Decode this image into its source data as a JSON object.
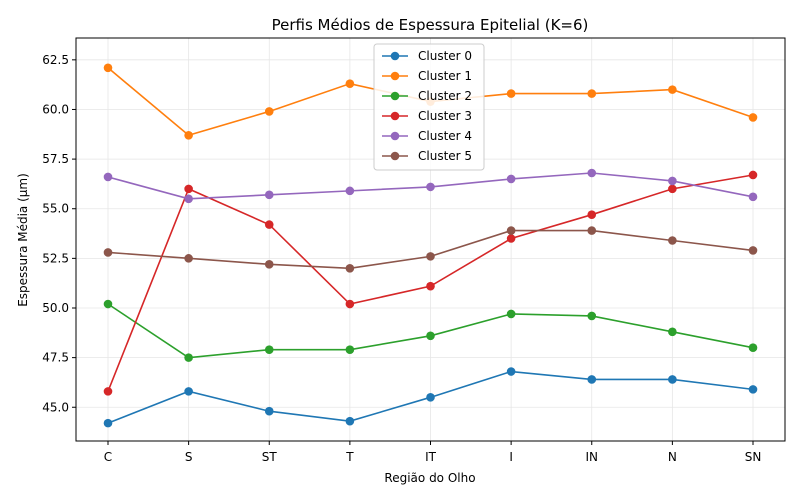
{
  "chart_data": {
    "type": "line",
    "title": "Perfis Médios de Espessura Epitelial (K=6)",
    "xlabel": "Região do Olho",
    "ylabel": "Espessura Média (µm)",
    "categories": [
      "C",
      "S",
      "ST",
      "T",
      "IT",
      "I",
      "IN",
      "N",
      "SN"
    ],
    "ylim": [
      43.3,
      63.6
    ],
    "yticks": [
      45.0,
      47.5,
      50.0,
      52.5,
      55.0,
      57.5,
      60.0,
      62.5
    ],
    "ytick_labels": [
      "45.0",
      "47.5",
      "50.0",
      "52.5",
      "55.0",
      "57.5",
      "60.0",
      "62.5"
    ],
    "grid": true,
    "legend_position": "top-center",
    "series": [
      {
        "name": "Cluster 0",
        "color": "#1f77b4",
        "values": [
          44.2,
          45.8,
          44.8,
          44.3,
          45.5,
          46.8,
          46.4,
          46.4,
          45.9
        ]
      },
      {
        "name": "Cluster 1",
        "color": "#ff7f0e",
        "values": [
          62.1,
          58.7,
          59.9,
          61.3,
          60.4,
          60.8,
          60.8,
          61.0,
          59.6
        ]
      },
      {
        "name": "Cluster 2",
        "color": "#2ca02c",
        "values": [
          50.2,
          47.5,
          47.9,
          47.9,
          48.6,
          49.7,
          49.6,
          48.8,
          48.0
        ]
      },
      {
        "name": "Cluster 3",
        "color": "#d62728",
        "values": [
          45.8,
          56.0,
          54.2,
          50.2,
          51.1,
          53.5,
          54.7,
          56.0,
          56.7
        ]
      },
      {
        "name": "Cluster 4",
        "color": "#9467bd",
        "values": [
          56.6,
          55.5,
          55.7,
          55.9,
          56.1,
          56.5,
          56.8,
          56.4,
          55.6
        ]
      },
      {
        "name": "Cluster 5",
        "color": "#8c564b",
        "values": [
          52.8,
          52.5,
          52.2,
          52.0,
          52.6,
          53.9,
          53.9,
          53.4,
          52.9
        ]
      }
    ]
  }
}
